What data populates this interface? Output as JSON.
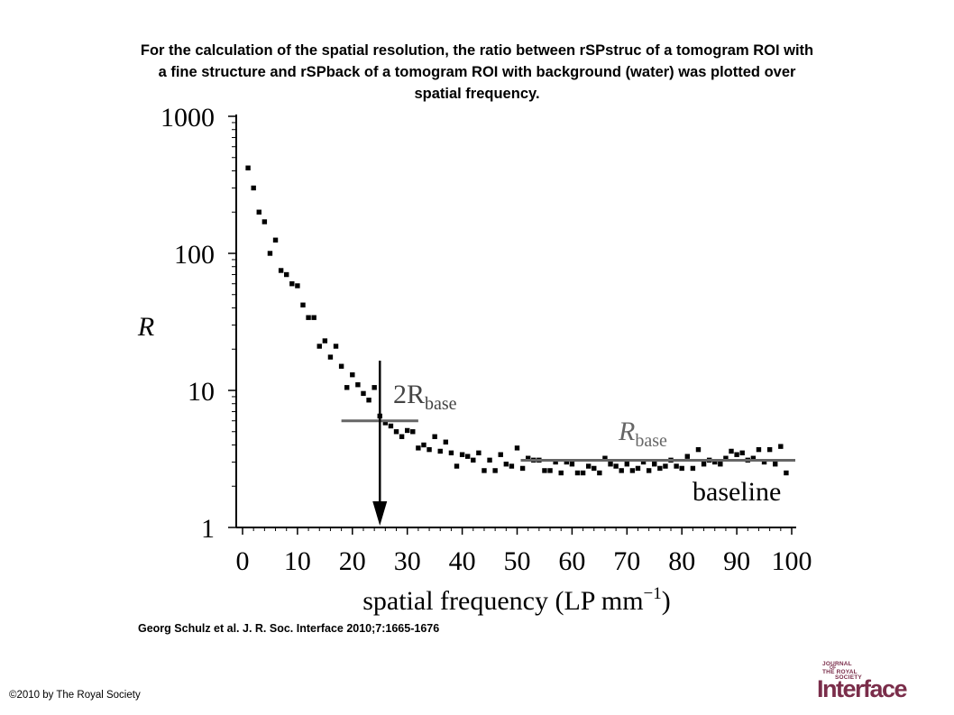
{
  "title_lines": [
    "For the calculation of the spatial resolution, the ratio between rSPstruc of a tomogram ROI with",
    "a fine structure and rSPback of a tomogram ROI with background (water) was plotted over",
    "spatial frequency."
  ],
  "citation": "Georg Schulz et al. J. R. Soc. Interface 2010;7:1665-1676",
  "copyright": "©2010 by The Royal Society",
  "logo": {
    "line1": "JOURNAL",
    "line2": "OF",
    "line3": "THE ROYAL",
    "line4": "SOCIETY",
    "word": "Interface",
    "color": "#7a2d4a"
  },
  "chart_data": {
    "type": "scatter",
    "xlabel": "spatial frequency (LP mm",
    "xlabel_sup": "−1",
    "xlabel_end": ")",
    "ylabel": "R",
    "xlim": [
      0,
      100
    ],
    "ylim": [
      1,
      1000
    ],
    "y_scale": "log",
    "x_ticks": [
      0,
      10,
      20,
      30,
      40,
      50,
      60,
      70,
      80,
      90,
      100
    ],
    "y_ticks": [
      {
        "value": 1,
        "label": "1"
      },
      {
        "value": 10,
        "label": "10"
      },
      {
        "value": 100,
        "label": "100"
      },
      {
        "value": 1000,
        "label": "1000"
      }
    ],
    "grid": false,
    "series": [
      {
        "x": [
          1,
          2,
          3,
          4,
          5,
          6,
          7,
          8,
          9,
          10,
          11,
          12,
          13,
          14,
          15,
          16,
          17,
          18,
          19,
          20,
          21,
          22,
          23,
          24,
          25,
          26,
          27,
          28,
          29,
          30,
          31,
          32,
          33,
          34,
          35,
          36,
          37,
          38,
          39,
          40,
          41,
          42,
          43,
          44,
          45,
          46,
          47,
          48,
          49,
          50,
          51,
          52,
          53,
          54,
          55,
          56,
          57,
          58,
          59,
          60,
          61,
          62,
          63,
          64,
          65,
          66,
          67,
          68,
          69,
          70,
          71,
          72,
          73,
          74,
          75,
          76,
          77,
          78,
          79,
          80,
          81,
          82,
          83,
          84,
          85,
          86,
          87,
          88,
          89,
          90,
          91,
          92,
          93,
          94,
          95,
          96,
          97,
          98,
          99
        ],
        "y": [
          420,
          300,
          200,
          170,
          100,
          125,
          75,
          70,
          60,
          58,
          42,
          34,
          34,
          21,
          23,
          17.5,
          21,
          15,
          10.5,
          13,
          11,
          9.5,
          8.5,
          10.5,
          6.5,
          5.8,
          5.5,
          5,
          4.6,
          5.1,
          5.0,
          3.8,
          4.0,
          3.7,
          4.6,
          3.6,
          4.2,
          3.5,
          2.8,
          3.4,
          3.3,
          3.1,
          3.5,
          2.6,
          3.1,
          2.6,
          3.4,
          2.9,
          2.8,
          3.8,
          2.7,
          3.2,
          3.1,
          3.1,
          2.6,
          2.6,
          3.0,
          2.5,
          3.0,
          2.9,
          2.5,
          2.5,
          2.8,
          2.7,
          2.5,
          3.2,
          2.9,
          2.8,
          2.6,
          2.9,
          2.6,
          2.7,
          3.0,
          2.6,
          2.9,
          2.7,
          2.8,
          3.1,
          2.8,
          2.7,
          3.3,
          2.7,
          3.7,
          2.9,
          3.1,
          3.0,
          2.9,
          3.2,
          3.6,
          3.4,
          3.5,
          3.1,
          3.2,
          3.7,
          3.0,
          3.7,
          2.9,
          3.9,
          2.5
        ]
      }
    ],
    "annotations": {
      "baseline_value": 3.0,
      "baseline_x_range": [
        50,
        100
      ],
      "two_r_base_value": 6.0,
      "two_r_base_x_range": [
        18,
        32
      ],
      "arrow_x": 25,
      "label_2rbase_main": "2R",
      "label_2rbase_sub": "base",
      "label_rbase_main": "R",
      "label_rbase_sub": "base",
      "label_baseline": "baseline"
    }
  }
}
